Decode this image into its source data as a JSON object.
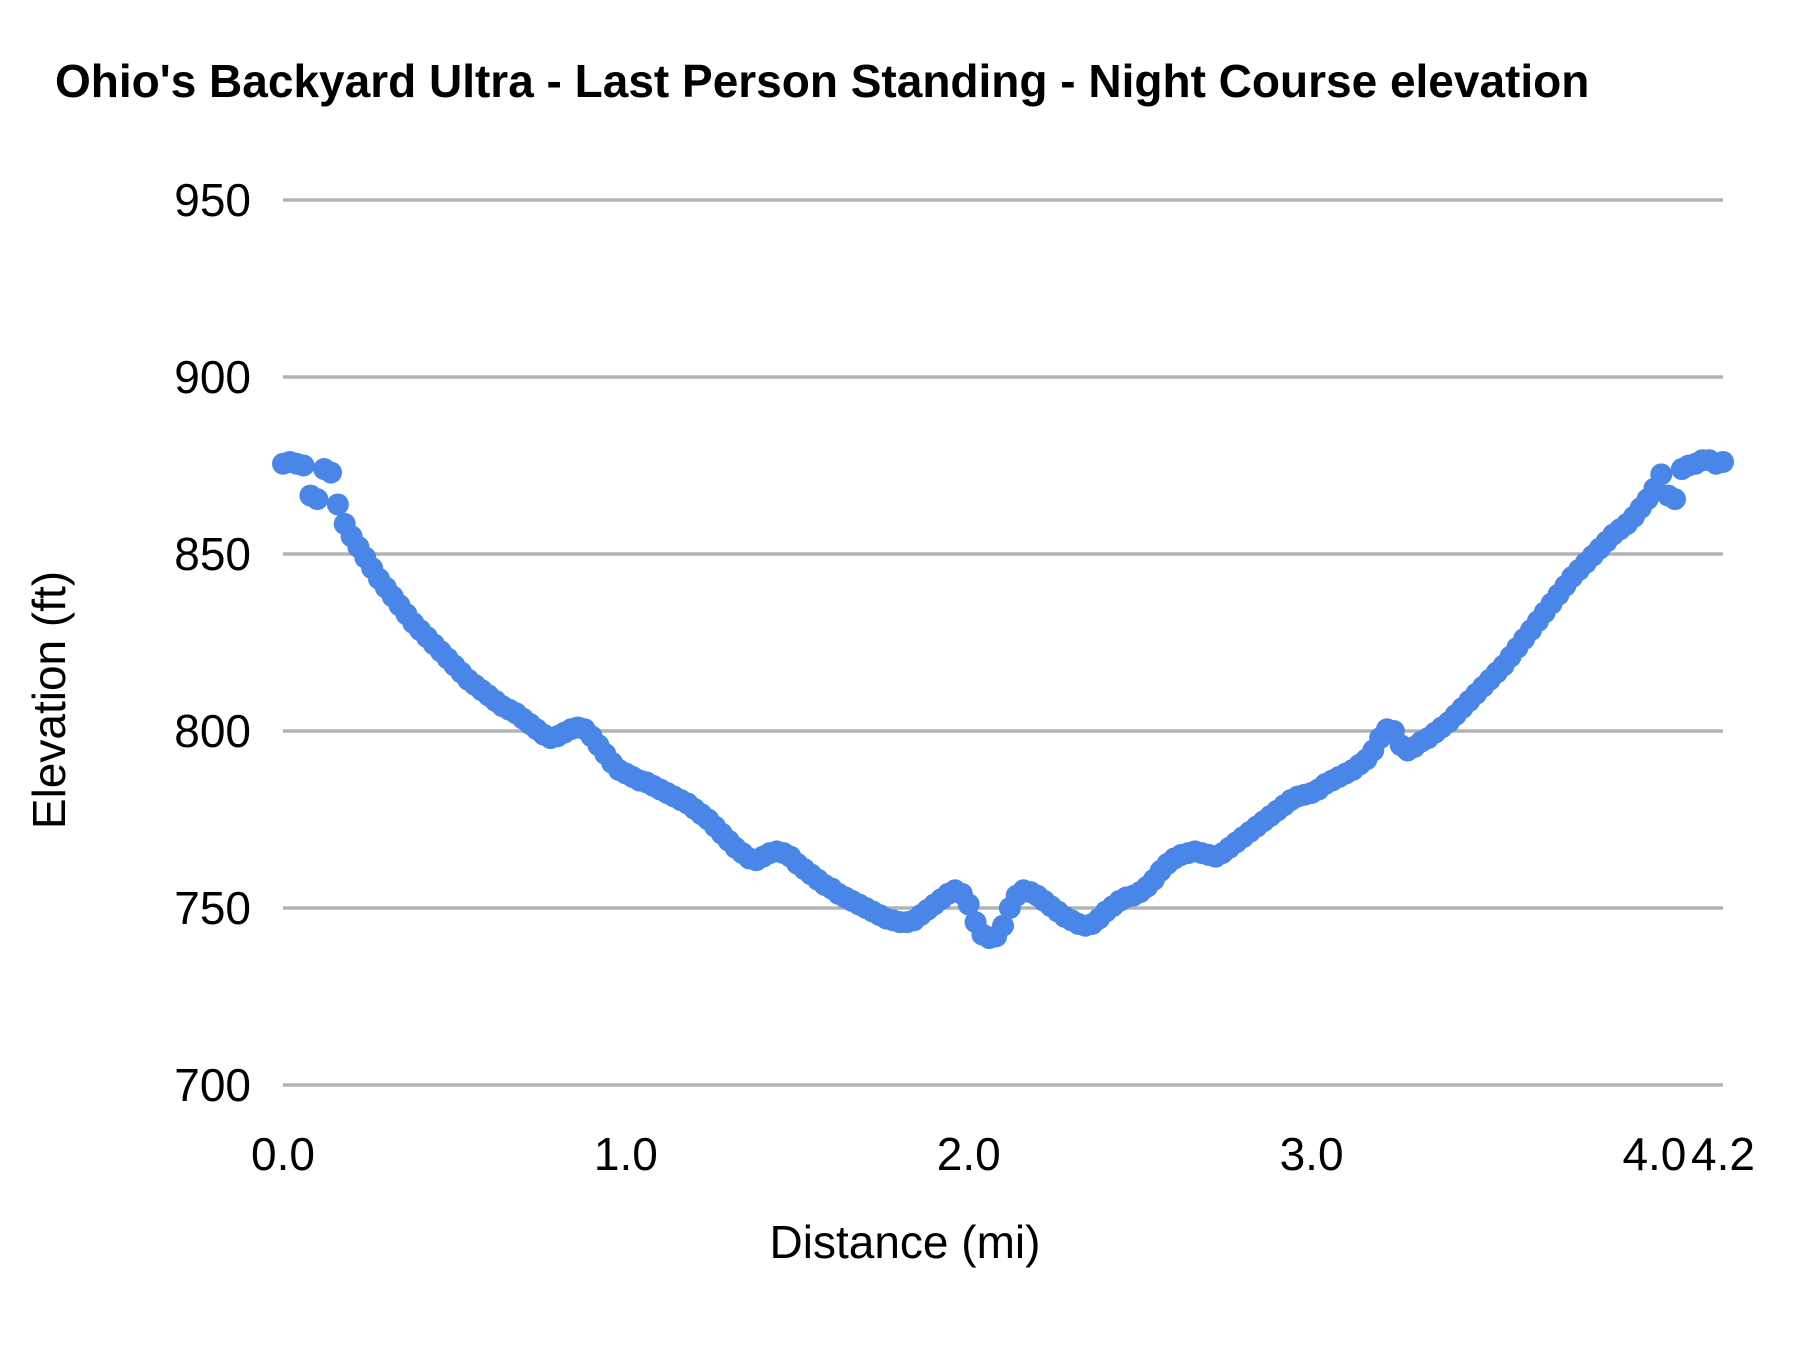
{
  "chart_data": {
    "type": "scatter",
    "title": "Ohio's Backyard Ultra - Last Person Standing - Night Course elevation",
    "xlabel": "Distance (mi)",
    "ylabel": "Elevation (ft)",
    "xlim": [
      0,
      4.2
    ],
    "ylim": [
      700,
      950
    ],
    "grid": "horizontal",
    "legend": "none",
    "marker_color": "#4a86e8",
    "gridline_color": "#b3b3b3",
    "x_ticks": [
      {
        "value": 0.0,
        "label": "0.0"
      },
      {
        "value": 1.0,
        "label": "1.0"
      },
      {
        "value": 2.0,
        "label": "2.0"
      },
      {
        "value": 3.0,
        "label": "3.0"
      },
      {
        "value": 4.0,
        "label": "4.0"
      },
      {
        "value": 4.2,
        "label": "4.2"
      }
    ],
    "y_ticks": [
      {
        "value": 950,
        "label": "950"
      },
      {
        "value": 900,
        "label": "900"
      },
      {
        "value": 850,
        "label": "850"
      },
      {
        "value": 800,
        "label": "800"
      },
      {
        "value": 750,
        "label": "750"
      },
      {
        "value": 700,
        "label": "700"
      }
    ],
    "points": [
      [
        0.0,
        875.5
      ],
      [
        0.02,
        876
      ],
      [
        0.04,
        875.5
      ],
      [
        0.06,
        875
      ],
      [
        0.08,
        866.5
      ],
      [
        0.1,
        865.5
      ],
      [
        0.12,
        874
      ],
      [
        0.14,
        873
      ],
      [
        0.16,
        864
      ],
      [
        0.18,
        858.5
      ],
      [
        0.2,
        855
      ],
      [
        0.22,
        852
      ],
      [
        0.24,
        849
      ],
      [
        0.26,
        846
      ],
      [
        0.28,
        843
      ],
      [
        0.3,
        840.5
      ],
      [
        0.32,
        838
      ],
      [
        0.34,
        835.5
      ],
      [
        0.36,
        833
      ],
      [
        0.38,
        830.5
      ],
      [
        0.4,
        828.5
      ],
      [
        0.42,
        826.5
      ],
      [
        0.44,
        824.5
      ],
      [
        0.46,
        822.5
      ],
      [
        0.48,
        820.5
      ],
      [
        0.5,
        818.5
      ],
      [
        0.52,
        816.5
      ],
      [
        0.54,
        814.5
      ],
      [
        0.56,
        813
      ],
      [
        0.58,
        811.5
      ],
      [
        0.6,
        810
      ],
      [
        0.62,
        808.5
      ],
      [
        0.64,
        807
      ],
      [
        0.66,
        806
      ],
      [
        0.68,
        805
      ],
      [
        0.7,
        803.5
      ],
      [
        0.72,
        802
      ],
      [
        0.74,
        800.5
      ],
      [
        0.76,
        799
      ],
      [
        0.78,
        798
      ],
      [
        0.8,
        798.5
      ],
      [
        0.82,
        799.5
      ],
      [
        0.84,
        800.5
      ],
      [
        0.86,
        801
      ],
      [
        0.88,
        800.5
      ],
      [
        0.9,
        798.5
      ],
      [
        0.92,
        796
      ],
      [
        0.94,
        793.5
      ],
      [
        0.96,
        791
      ],
      [
        0.98,
        789
      ],
      [
        1.0,
        788
      ],
      [
        1.02,
        787
      ],
      [
        1.04,
        786
      ],
      [
        1.06,
        785.5
      ],
      [
        1.08,
        784.5
      ],
      [
        1.1,
        783.5
      ],
      [
        1.12,
        782.5
      ],
      [
        1.14,
        781.5
      ],
      [
        1.16,
        780.5
      ],
      [
        1.18,
        779.5
      ],
      [
        1.2,
        778
      ],
      [
        1.22,
        776.5
      ],
      [
        1.24,
        775
      ],
      [
        1.26,
        773
      ],
      [
        1.28,
        771
      ],
      [
        1.3,
        769
      ],
      [
        1.32,
        767
      ],
      [
        1.34,
        765.5
      ],
      [
        1.36,
        764
      ],
      [
        1.38,
        763.5
      ],
      [
        1.4,
        764.5
      ],
      [
        1.42,
        765.5
      ],
      [
        1.44,
        766
      ],
      [
        1.46,
        765.5
      ],
      [
        1.48,
        764.5
      ],
      [
        1.5,
        762.5
      ],
      [
        1.52,
        761
      ],
      [
        1.54,
        759.5
      ],
      [
        1.56,
        758
      ],
      [
        1.58,
        756.5
      ],
      [
        1.6,
        755.5
      ],
      [
        1.62,
        754
      ],
      [
        1.64,
        753
      ],
      [
        1.66,
        752
      ],
      [
        1.68,
        751
      ],
      [
        1.7,
        750
      ],
      [
        1.72,
        749
      ],
      [
        1.74,
        748
      ],
      [
        1.76,
        747
      ],
      [
        1.78,
        746.5
      ],
      [
        1.8,
        746
      ],
      [
        1.82,
        746
      ],
      [
        1.84,
        746.5
      ],
      [
        1.86,
        748
      ],
      [
        1.88,
        749.5
      ],
      [
        1.9,
        751
      ],
      [
        1.92,
        752.5
      ],
      [
        1.94,
        754
      ],
      [
        1.96,
        755
      ],
      [
        1.98,
        754
      ],
      [
        2.0,
        751
      ],
      [
        2.02,
        746
      ],
      [
        2.04,
        742.5
      ],
      [
        2.06,
        741.5
      ],
      [
        2.08,
        742
      ],
      [
        2.1,
        745
      ],
      [
        2.12,
        750
      ],
      [
        2.14,
        753.5
      ],
      [
        2.16,
        755
      ],
      [
        2.18,
        754.5
      ],
      [
        2.2,
        753.5
      ],
      [
        2.22,
        752
      ],
      [
        2.24,
        750.5
      ],
      [
        2.26,
        749
      ],
      [
        2.28,
        747.5
      ],
      [
        2.3,
        746.5
      ],
      [
        2.32,
        745.5
      ],
      [
        2.34,
        745
      ],
      [
        2.36,
        745.5
      ],
      [
        2.38,
        747
      ],
      [
        2.4,
        749
      ],
      [
        2.42,
        750.5
      ],
      [
        2.44,
        752
      ],
      [
        2.46,
        753
      ],
      [
        2.48,
        753.5
      ],
      [
        2.5,
        754.5
      ],
      [
        2.52,
        756
      ],
      [
        2.54,
        758
      ],
      [
        2.56,
        760.5
      ],
      [
        2.58,
        762.5
      ],
      [
        2.6,
        764
      ],
      [
        2.62,
        765
      ],
      [
        2.64,
        765.5
      ],
      [
        2.66,
        766
      ],
      [
        2.68,
        765.5
      ],
      [
        2.7,
        765
      ],
      [
        2.72,
        764.5
      ],
      [
        2.74,
        765.5
      ],
      [
        2.76,
        767
      ],
      [
        2.78,
        768.5
      ],
      [
        2.8,
        770
      ],
      [
        2.82,
        771.5
      ],
      [
        2.84,
        773
      ],
      [
        2.86,
        774.5
      ],
      [
        2.88,
        776
      ],
      [
        2.9,
        777.5
      ],
      [
        2.92,
        779
      ],
      [
        2.94,
        780.5
      ],
      [
        2.96,
        781.5
      ],
      [
        2.98,
        782
      ],
      [
        3.0,
        782.5
      ],
      [
        3.02,
        783.5
      ],
      [
        3.04,
        785
      ],
      [
        3.06,
        786
      ],
      [
        3.08,
        787
      ],
      [
        3.1,
        788
      ],
      [
        3.12,
        789
      ],
      [
        3.14,
        790.5
      ],
      [
        3.16,
        792
      ],
      [
        3.18,
        794.5
      ],
      [
        3.2,
        798
      ],
      [
        3.22,
        800.5
      ],
      [
        3.24,
        800
      ],
      [
        3.26,
        796
      ],
      [
        3.28,
        794.5
      ],
      [
        3.3,
        795.5
      ],
      [
        3.32,
        797
      ],
      [
        3.34,
        798
      ],
      [
        3.36,
        799.5
      ],
      [
        3.38,
        801
      ],
      [
        3.4,
        802.5
      ],
      [
        3.42,
        804.5
      ],
      [
        3.44,
        806.5
      ],
      [
        3.46,
        808.5
      ],
      [
        3.48,
        810.5
      ],
      [
        3.5,
        812.5
      ],
      [
        3.52,
        814.5
      ],
      [
        3.54,
        816.5
      ],
      [
        3.56,
        818.5
      ],
      [
        3.58,
        821
      ],
      [
        3.6,
        823.5
      ],
      [
        3.62,
        826
      ],
      [
        3.64,
        828.5
      ],
      [
        3.66,
        831
      ],
      [
        3.68,
        833.5
      ],
      [
        3.7,
        836
      ],
      [
        3.72,
        838.5
      ],
      [
        3.74,
        841
      ],
      [
        3.76,
        843.5
      ],
      [
        3.78,
        845.5
      ],
      [
        3.8,
        847.5
      ],
      [
        3.82,
        849.5
      ],
      [
        3.84,
        851.5
      ],
      [
        3.86,
        853.5
      ],
      [
        3.88,
        855.5
      ],
      [
        3.9,
        857
      ],
      [
        3.92,
        858.5
      ],
      [
        3.94,
        860.5
      ],
      [
        3.96,
        863
      ],
      [
        3.98,
        865.5
      ],
      [
        4.0,
        868.5
      ],
      [
        4.02,
        872.5
      ],
      [
        4.04,
        866.5
      ],
      [
        4.06,
        865.5
      ],
      [
        4.08,
        874
      ],
      [
        4.1,
        875
      ],
      [
        4.12,
        875.5
      ],
      [
        4.14,
        876.5
      ],
      [
        4.16,
        876.5
      ],
      [
        4.18,
        875.5
      ],
      [
        4.2,
        876
      ]
    ]
  }
}
